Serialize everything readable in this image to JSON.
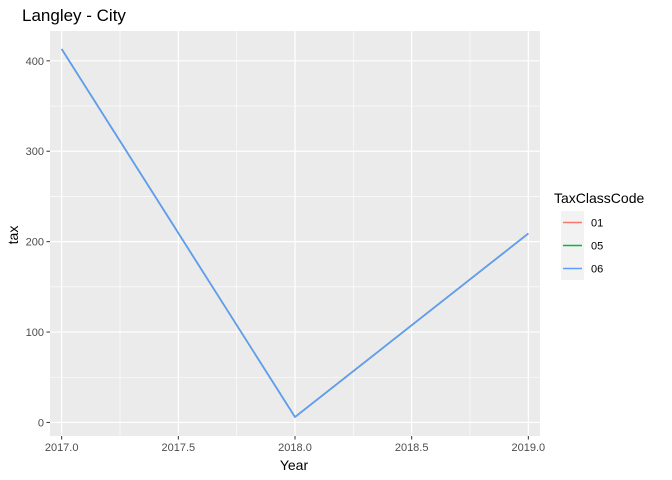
{
  "chart_data": {
    "type": "line",
    "title": "Langley - City",
    "xlabel": "Year",
    "ylabel": "tax",
    "xlim": [
      2016.95,
      2019.05
    ],
    "ylim": [
      -15,
      433
    ],
    "x_ticks": [
      2017.0,
      2017.5,
      2018.0,
      2018.5,
      2019.0
    ],
    "x_tick_labels": [
      "2017.0",
      "2017.5",
      "2018.0",
      "2018.5",
      "2019.0"
    ],
    "y_ticks": [
      0,
      100,
      200,
      300,
      400
    ],
    "y_tick_labels": [
      "0",
      "100",
      "200",
      "300",
      "400"
    ],
    "grid": true,
    "legend": {
      "title": "TaxClassCode",
      "position": "right",
      "entries": [
        {
          "label": "01",
          "color": "#F8766D"
        },
        {
          "label": "05",
          "color": "#00BA38"
        },
        {
          "label": "06",
          "color": "#619CFF"
        }
      ]
    },
    "series": [
      {
        "name": "01",
        "color": "#F8766D",
        "x": [
          2017,
          2018,
          2019
        ],
        "y": [
          413,
          6,
          209
        ]
      },
      {
        "name": "05",
        "color": "#00BA38",
        "x": [
          2017,
          2018,
          2019
        ],
        "y": [
          413,
          6,
          209
        ]
      },
      {
        "name": "06",
        "color": "#619CFF",
        "x": [
          2017,
          2018,
          2019
        ],
        "y": [
          413,
          6,
          209
        ]
      }
    ]
  }
}
